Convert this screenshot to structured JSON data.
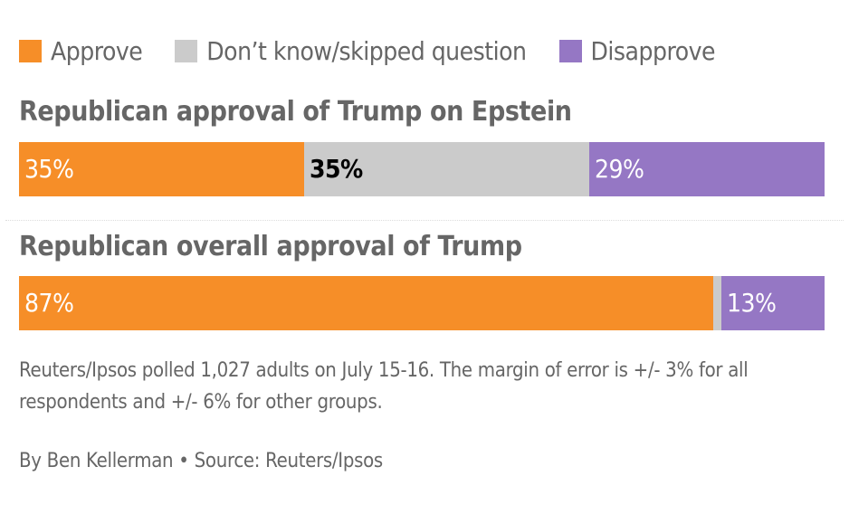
{
  "legend": [
    {
      "label": "Approve",
      "color": "#f68e28"
    },
    {
      "label": "Don’t know/skipped question",
      "color": "#cbcbcb"
    },
    {
      "label": "Disapprove",
      "color": "#9577c4"
    }
  ],
  "chart_data": [
    {
      "type": "bar",
      "orientation": "horizontal-stacked-100",
      "title": "Republican approval of Trump on Epstein",
      "categories": [
        "Approve",
        "Don’t know/skipped question",
        "Disapprove"
      ],
      "values": [
        35,
        35,
        29
      ],
      "labels": [
        "35%",
        "35%",
        "29%"
      ],
      "label_colors": [
        "#ffffff",
        "#000000",
        "#ffffff"
      ]
    },
    {
      "type": "bar",
      "orientation": "horizontal-stacked-100",
      "title": "Republican overall approval of Trump",
      "categories": [
        "Approve",
        "Don’t know/skipped question",
        "Disapprove"
      ],
      "values": [
        87,
        1,
        13
      ],
      "labels": [
        "87%",
        "",
        "13%"
      ],
      "label_colors": [
        "#ffffff",
        "#000000",
        "#ffffff"
      ]
    }
  ],
  "note": "Reuters/Ipsos polled 1,027 adults on July 15-16. The margin of error is +/- 3% for all respondents and +/- 6% for other groups.",
  "byline": "By Ben Kellerman • Source: Reuters/Ipsos"
}
